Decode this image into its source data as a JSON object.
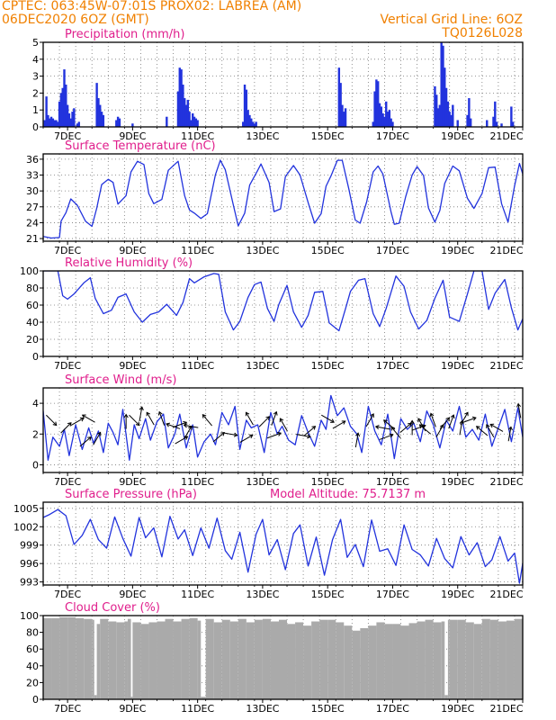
{
  "header": {
    "line1": "CPTEC:    063:45W-07:01S   PROX02: LABREA (AM)",
    "line2_left": "06DEC2020 6OZ (GMT)",
    "line2_right": "Vertical Grid Line: 6OZ",
    "line3_right": "TQ0126L028"
  },
  "colors": {
    "series": "#2233dd",
    "cloud": "#aaaaaa",
    "title": "#e01e8c",
    "header": "#f08000"
  },
  "chart_data": [
    {
      "type": "bar",
      "title": "Precipitation (mm/h)",
      "ylim": [
        0,
        5
      ],
      "yticks": [
        "0",
        "1",
        "2",
        "3",
        "4",
        "5"
      ],
      "xlim": [
        6.25,
        21.0
      ],
      "xticks": [
        "7DEC",
        "9DEC",
        "11DEC",
        "13DEC",
        "15DEC",
        "17DEC",
        "19DEC",
        "21DEC"
      ],
      "x": [
        6.3,
        6.35,
        6.4,
        6.45,
        6.5,
        6.55,
        6.6,
        6.65,
        6.7,
        6.75,
        6.8,
        6.85,
        6.9,
        6.95,
        7.0,
        7.05,
        7.1,
        7.15,
        7.2,
        7.3,
        7.35,
        7.9,
        7.95,
        8.0,
        8.05,
        8.1,
        8.5,
        8.55,
        8.6,
        9.0,
        10.05,
        10.4,
        10.45,
        10.5,
        10.55,
        10.6,
        10.65,
        10.7,
        10.75,
        10.8,
        10.85,
        10.9,
        10.95,
        11.0,
        12.4,
        12.45,
        12.5,
        12.55,
        12.6,
        12.65,
        12.7,
        12.75,
        12.8,
        15.35,
        15.4,
        15.45,
        15.5,
        15.55,
        16.4,
        16.45,
        16.5,
        16.55,
        16.6,
        16.65,
        16.7,
        16.75,
        16.8,
        16.85,
        16.9,
        16.95,
        17.0,
        18.3,
        18.35,
        18.4,
        18.45,
        18.5,
        18.55,
        18.6,
        18.65,
        18.7,
        18.75,
        18.8,
        18.85,
        19.0,
        19.3,
        19.35,
        19.4,
        19.9,
        20.1,
        20.15,
        20.2,
        20.35,
        20.65,
        20.7
      ],
      "values": [
        0.4,
        1.8,
        0.7,
        0.5,
        0.6,
        0.5,
        0.4,
        0.4,
        0.3,
        1.5,
        2.0,
        2.3,
        3.4,
        2.5,
        1.3,
        0.8,
        0.5,
        0.9,
        1.1,
        0.2,
        0.3,
        2.6,
        1.7,
        1.3,
        0.9,
        0.7,
        0.4,
        0.6,
        0.5,
        0.2,
        0.6,
        2.1,
        3.5,
        3.4,
        2.5,
        1.7,
        1.3,
        1.6,
        0.9,
        0.4,
        0.8,
        0.6,
        0.5,
        0.4,
        0.3,
        2.5,
        2.2,
        1.0,
        0.7,
        0.5,
        0.3,
        0.2,
        0.3,
        3.5,
        2.6,
        1.3,
        0.9,
        1.1,
        0.3,
        2.1,
        2.8,
        2.7,
        1.4,
        1.2,
        0.8,
        0.6,
        1.5,
        0.9,
        1.0,
        0.5,
        0.3,
        2.4,
        1.9,
        1.1,
        1.3,
        5.2,
        4.8,
        3.5,
        2.3,
        1.5,
        0.9,
        0.7,
        1.3,
        0.4,
        0.7,
        1.7,
        0.5,
        0.4,
        0.6,
        1.5,
        0.3,
        0.2,
        1.2,
        0.3
      ]
    },
    {
      "type": "line",
      "title": "Surface Temperature (nC)",
      "ylim": [
        20.5,
        37
      ],
      "yticks": [
        "21",
        "24",
        "27",
        "30",
        "33",
        "36"
      ],
      "xlim": [
        6.25,
        21.0
      ],
      "xticks": [
        "7DEC",
        "9DEC",
        "11DEC",
        "13DEC",
        "15DEC",
        "17DEC",
        "19DEC",
        "21DEC"
      ],
      "x": [
        6.25,
        6.5,
        6.75,
        6.8,
        6.95,
        7.1,
        7.3,
        7.55,
        7.75,
        7.9,
        8.05,
        8.25,
        8.4,
        8.55,
        8.8,
        8.95,
        9.15,
        9.35,
        9.5,
        9.65,
        9.9,
        10.1,
        10.4,
        10.6,
        10.75,
        10.9,
        11.1,
        11.3,
        11.55,
        11.7,
        11.85,
        12.1,
        12.25,
        12.45,
        12.6,
        12.85,
        12.95,
        13.2,
        13.35,
        13.55,
        13.7,
        13.95,
        14.15,
        14.4,
        14.6,
        14.8,
        14.95,
        15.1,
        15.3,
        15.45,
        15.65,
        15.85,
        16.0,
        16.2,
        16.4,
        16.55,
        16.7,
        16.95,
        17.05,
        17.2,
        17.4,
        17.6,
        17.75,
        17.95,
        18.1,
        18.3,
        18.45,
        18.6,
        18.85,
        19.05,
        19.3,
        19.5,
        19.75,
        19.95,
        20.15,
        20.35,
        20.55,
        20.75,
        20.9,
        21.0
      ],
      "values": [
        21.4,
        21.1,
        21.2,
        24.3,
        25.9,
        28.5,
        27.3,
        24.3,
        23.3,
        26.8,
        31.2,
        32.2,
        31.6,
        27.5,
        29.1,
        33.6,
        35.6,
        35.0,
        29.5,
        27.6,
        28.4,
        33.9,
        35.6,
        29.1,
        26.4,
        25.8,
        24.8,
        25.7,
        33.1,
        35.8,
        34.0,
        27.3,
        23.4,
        25.8,
        31.1,
        33.9,
        35.1,
        31.6,
        26.1,
        26.6,
        32.7,
        34.8,
        33.0,
        27.8,
        23.9,
        25.7,
        30.9,
        32.8,
        35.8,
        35.8,
        30.4,
        24.5,
        23.9,
        27.9,
        33.6,
        34.7,
        33.2,
        26.0,
        23.7,
        23.9,
        28.9,
        33.0,
        34.6,
        32.9,
        26.8,
        24.1,
        26.3,
        31.4,
        34.7,
        33.8,
        28.6,
        26.7,
        29.5,
        34.4,
        34.5,
        27.6,
        24.1,
        31.0,
        35.2,
        33.2
      ]
    },
    {
      "type": "line",
      "title": "Relative Humidity (%)",
      "ylim": [
        0,
        100
      ],
      "yticks": [
        "0",
        "20",
        "40",
        "60",
        "80",
        "100"
      ],
      "xlim": [
        6.25,
        21.0
      ],
      "xticks": [
        "7DEC",
        "9DEC",
        "11DEC",
        "13DEC",
        "15DEC",
        "17DEC",
        "19DEC",
        "21DEC"
      ],
      "x": [
        6.25,
        6.7,
        6.85,
        7.0,
        7.2,
        7.5,
        7.7,
        7.85,
        8.1,
        8.35,
        8.55,
        8.8,
        9.05,
        9.3,
        9.55,
        9.8,
        10.05,
        10.35,
        10.55,
        10.75,
        10.9,
        11.2,
        11.5,
        11.65,
        11.85,
        12.1,
        12.3,
        12.55,
        12.75,
        12.95,
        13.15,
        13.35,
        13.5,
        13.75,
        13.95,
        14.2,
        14.4,
        14.6,
        14.85,
        15.05,
        15.35,
        15.55,
        15.7,
        15.95,
        16.15,
        16.4,
        16.6,
        16.8,
        17.1,
        17.35,
        17.55,
        17.8,
        18.05,
        18.3,
        18.55,
        18.75,
        19.05,
        19.3,
        19.5,
        19.75,
        19.95,
        20.15,
        20.45,
        20.65,
        20.85,
        21.0
      ],
      "values": [
        100,
        100,
        71,
        67,
        73,
        86,
        92,
        68,
        50,
        54,
        69,
        73,
        52,
        40,
        49,
        52,
        61,
        48,
        63,
        91,
        86,
        93,
        97,
        96,
        52,
        31,
        41,
        69,
        84,
        87,
        56,
        41,
        61,
        83,
        52,
        34,
        48,
        75,
        76,
        39,
        30,
        56,
        76,
        89,
        91,
        50,
        35,
        56,
        94,
        82,
        52,
        32,
        42,
        68,
        89,
        46,
        41,
        73,
        100,
        100,
        55,
        74,
        90,
        57,
        31,
        44
      ]
    },
    {
      "type": "line",
      "title": "Surface Wind (m/s)",
      "ylim": [
        -0.5,
        5.0
      ],
      "yticks": [
        "0",
        "2",
        "4"
      ],
      "xlim": [
        6.25,
        21.0
      ],
      "xticks": [
        "7DEC",
        "9DEC",
        "11DEC",
        "13DEC",
        "15DEC",
        "17DEC",
        "19DEC",
        "21DEC"
      ],
      "x": [
        6.25,
        6.4,
        6.55,
        6.75,
        6.9,
        7.05,
        7.25,
        7.45,
        7.65,
        7.8,
        7.95,
        8.1,
        8.25,
        8.4,
        8.55,
        8.7,
        8.9,
        9.05,
        9.2,
        9.4,
        9.55,
        9.75,
        9.95,
        10.1,
        10.3,
        10.45,
        10.65,
        10.85,
        11.0,
        11.2,
        11.4,
        11.55,
        11.75,
        11.95,
        12.15,
        12.3,
        12.5,
        12.65,
        12.85,
        13.05,
        13.25,
        13.45,
        13.6,
        13.8,
        14.0,
        14.2,
        14.4,
        14.6,
        14.8,
        14.95,
        15.1,
        15.3,
        15.5,
        15.7,
        15.9,
        16.05,
        16.25,
        16.45,
        16.65,
        16.85,
        17.05,
        17.25,
        17.45,
        17.65,
        17.85,
        18.05,
        18.25,
        18.45,
        18.65,
        18.85,
        19.05,
        19.25,
        19.45,
        19.65,
        19.85,
        20.05,
        20.25,
        20.45,
        20.65,
        20.85,
        21.0
      ],
      "values": [
        3.5,
        0.3,
        1.8,
        1.2,
        2.3,
        0.6,
        2.6,
        1.0,
        2.4,
        1.4,
        2.2,
        0.8,
        2.7,
        2.1,
        1.3,
        3.6,
        0.3,
        2.6,
        1.7,
        3.0,
        1.6,
        2.8,
        3.3,
        1.1,
        2.0,
        3.3,
        1.1,
        2.6,
        0.5,
        1.5,
        2.0,
        1.3,
        3.4,
        2.6,
        3.8,
        1.0,
        2.9,
        2.4,
        2.6,
        0.8,
        3.4,
        2.0,
        2.5,
        1.6,
        1.3,
        3.2,
        2.1,
        1.2,
        2.9,
        2.3,
        4.5,
        3.2,
        3.7,
        2.5,
        2.0,
        0.8,
        3.8,
        2.2,
        1.3,
        3.3,
        0.4,
        3.0,
        2.3,
        2.7,
        1.5,
        3.5,
        2.6,
        1.1,
        2.9,
        2.2,
        3.8,
        1.8,
        2.3,
        1.6,
        3.3,
        1.2,
        2.4,
        3.6,
        1.5,
        3.7,
        1.8
      ],
      "arrows": [
        [
          6.5,
          2.9,
          45
        ],
        [
          6.95,
          2.4,
          -45
        ],
        [
          7.3,
          2.8,
          -30
        ],
        [
          7.55,
          1.5,
          -40
        ],
        [
          7.65,
          3.0,
          -150
        ],
        [
          7.9,
          1.7,
          -60
        ],
        [
          8.8,
          2.8,
          -90
        ],
        [
          9.05,
          2.9,
          45
        ],
        [
          9.25,
          3.3,
          -80
        ],
        [
          9.55,
          3.0,
          -120
        ],
        [
          9.9,
          3.0,
          -110
        ],
        [
          10.25,
          2.5,
          -160
        ],
        [
          10.45,
          2.6,
          -20
        ],
        [
          10.5,
          1.6,
          -30
        ],
        [
          10.7,
          2.1,
          -60
        ],
        [
          10.8,
          2.5,
          -170
        ],
        [
          11.3,
          2.9,
          -130
        ],
        [
          11.65,
          1.8,
          -40
        ],
        [
          12.0,
          2.0,
          10
        ],
        [
          12.5,
          1.7,
          -30
        ],
        [
          12.6,
          3.0,
          -120
        ],
        [
          13.05,
          2.8,
          -45
        ],
        [
          13.35,
          3.0,
          -70
        ],
        [
          13.35,
          1.9,
          -20
        ],
        [
          13.65,
          2.6,
          -120
        ],
        [
          14.25,
          1.9,
          10
        ],
        [
          14.45,
          2.2,
          -40
        ],
        [
          15.0,
          3.0,
          30
        ],
        [
          15.35,
          2.6,
          -30
        ],
        [
          15.9,
          1.6,
          -80
        ],
        [
          16.3,
          2.9,
          -60
        ],
        [
          16.7,
          2.4,
          -170
        ],
        [
          16.8,
          1.8,
          -20
        ],
        [
          16.9,
          2.6,
          -140
        ],
        [
          17.1,
          2.1,
          -130
        ],
        [
          17.4,
          2.4,
          -40
        ],
        [
          17.6,
          2.4,
          -90
        ],
        [
          17.8,
          2.4,
          -20
        ],
        [
          17.9,
          2.6,
          -120
        ],
        [
          18.0,
          2.3,
          -140
        ],
        [
          18.25,
          2.9,
          -110
        ],
        [
          18.45,
          2.2,
          -60
        ],
        [
          18.6,
          2.7,
          -50
        ],
        [
          18.8,
          2.8,
          -70
        ],
        [
          19.1,
          2.4,
          -80
        ],
        [
          19.2,
          3.0,
          -60
        ],
        [
          19.35,
          2.9,
          -20
        ],
        [
          19.75,
          2.2,
          -140
        ],
        [
          20.0,
          2.2,
          -120
        ],
        [
          20.2,
          2.4,
          -150
        ],
        [
          20.6,
          2.0,
          -80
        ],
        [
          20.9,
          3.5,
          -100
        ]
      ]
    },
    {
      "type": "line",
      "title": "Surface Pressure (hPa)",
      "annotation": "Model Altitude: 75.7137 m",
      "ylim": [
        992.5,
        1006
      ],
      "yticks": [
        "993",
        "996",
        "999",
        "1002",
        "1005"
      ],
      "xlim": [
        6.25,
        21.0
      ],
      "xticks": [
        "7DEC",
        "9DEC",
        "11DEC",
        "13DEC",
        "15DEC",
        "17DEC",
        "19DEC",
        "21DEC"
      ],
      "x": [
        6.25,
        6.45,
        6.7,
        6.95,
        7.2,
        7.45,
        7.7,
        7.95,
        8.2,
        8.45,
        8.7,
        8.95,
        9.2,
        9.4,
        9.65,
        9.9,
        10.15,
        10.4,
        10.6,
        10.85,
        11.1,
        11.35,
        11.6,
        11.85,
        12.05,
        12.3,
        12.55,
        12.8,
        13.0,
        13.2,
        13.45,
        13.7,
        13.95,
        14.15,
        14.4,
        14.65,
        14.9,
        15.15,
        15.4,
        15.6,
        15.85,
        16.1,
        16.35,
        16.6,
        16.85,
        17.1,
        17.35,
        17.6,
        17.85,
        18.1,
        18.35,
        18.6,
        18.85,
        19.1,
        19.35,
        19.6,
        19.85,
        20.05,
        20.3,
        20.55,
        20.75,
        20.9,
        21.0
      ],
      "values": [
        1003.5,
        1004.0,
        1004.8,
        1003.8,
        999.1,
        1000.6,
        1003.2,
        999.9,
        998.5,
        1003.6,
        1000.1,
        997.2,
        1003.5,
        1000.2,
        1001.8,
        997.1,
        1003.7,
        1000.0,
        1001.5,
        997.3,
        1001.8,
        998.5,
        1003.4,
        998.1,
        996.7,
        1001.1,
        994.6,
        1000.8,
        1003.2,
        997.4,
        999.9,
        995.0,
        1000.9,
        1002.3,
        995.6,
        1000.3,
        994.1,
        999.9,
        1003.2,
        997.0,
        999.1,
        995.5,
        1003.1,
        998.0,
        998.4,
        995.7,
        1002.3,
        998.3,
        997.4,
        995.6,
        1000.1,
        996.8,
        995.3,
        1000.4,
        997.4,
        999.4,
        995.5,
        996.6,
        1000.4,
        996.4,
        997.7,
        992.8,
        996.0
      ]
    },
    {
      "type": "bar",
      "title": "Cloud Cover (%)",
      "ylim": [
        0,
        100
      ],
      "yticks": [
        "0",
        "20",
        "40",
        "60",
        "80",
        "100"
      ],
      "xlim": [
        6.25,
        21.0
      ],
      "xticks": [
        "7DEC",
        "9DEC",
        "11DEC",
        "13DEC",
        "15DEC",
        "17DEC",
        "19DEC",
        "21DEC"
      ],
      "x": [
        6.25,
        6.5,
        6.75,
        7.0,
        7.25,
        7.5,
        7.75,
        7.82,
        7.9,
        8.0,
        8.25,
        8.5,
        8.75,
        8.85,
        8.95,
        9.0,
        9.25,
        9.5,
        9.75,
        10.0,
        10.25,
        10.5,
        10.75,
        11.0,
        11.1,
        11.25,
        11.5,
        11.75,
        12.0,
        12.25,
        12.5,
        12.75,
        13.0,
        13.25,
        13.5,
        13.75,
        14.0,
        14.25,
        14.5,
        14.75,
        15.0,
        15.25,
        15.5,
        15.75,
        16.0,
        16.25,
        16.5,
        16.75,
        17.0,
        17.25,
        17.5,
        17.75,
        18.0,
        18.25,
        18.5,
        18.6,
        18.7,
        18.75,
        19.0,
        19.25,
        19.5,
        19.75,
        20.0,
        20.25,
        20.5,
        20.75,
        21.0
      ],
      "values": [
        97,
        97,
        98,
        98,
        97,
        96,
        95,
        5,
        90,
        96,
        93,
        92,
        93,
        96,
        3,
        92,
        90,
        92,
        93,
        96,
        93,
        96,
        97,
        94,
        3,
        96,
        92,
        95,
        93,
        96,
        92,
        95,
        96,
        93,
        95,
        90,
        92,
        88,
        93,
        95,
        95,
        92,
        88,
        82,
        85,
        88,
        92,
        90,
        90,
        88,
        91,
        93,
        95,
        92,
        93,
        5,
        95,
        95,
        95,
        92,
        90,
        96,
        95,
        93,
        94,
        96,
        95
      ]
    }
  ]
}
